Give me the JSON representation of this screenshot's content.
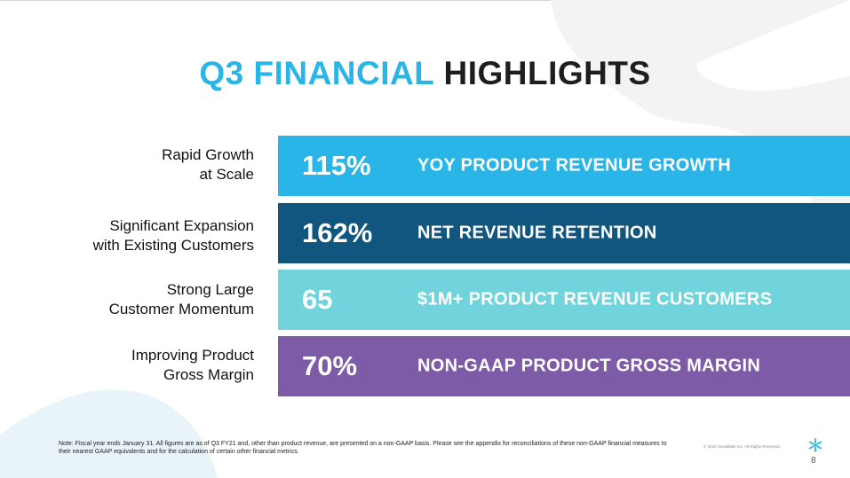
{
  "title": {
    "highlight": "Q3 FINANCIAL",
    "rest": "HIGHLIGHTS"
  },
  "rows": [
    {
      "label_line1": "Rapid Growth",
      "label_line2": "at Scale",
      "metric": "115%",
      "description": "YOY PRODUCT REVENUE GROWTH",
      "color": "#29b5e8"
    },
    {
      "label_line1": "Significant Expansion",
      "label_line2": "with Existing Customers",
      "metric": "162%",
      "description": "NET REVENUE RETENTION",
      "color": "#11567f"
    },
    {
      "label_line1": "Strong Large",
      "label_line2": "Customer Momentum",
      "metric": "65",
      "description": "$1M+ PRODUCT REVENUE CUSTOMERS",
      "color": "#71d3dc"
    },
    {
      "label_line1": "Improving Product",
      "label_line2": "Gross Margin",
      "metric": "70%",
      "description": "NON-GAAP PRODUCT GROSS MARGIN",
      "color": "#7d5ba6"
    }
  ],
  "footer": {
    "note": "Note: Fiscal year ends January 31. All figures are as of Q3 FY21 and, other than product revenue, are presented on a non-GAAP basis. Please see the appendix for reconciliations of these non-GAAP financial measures to their nearest GAAP equivalents and for the calculation of certain other financial metrics.",
    "copyright": "© 2020 Snowflake Inc. All Rights Reserved.",
    "page_number": "8",
    "logo_icon": "snowflake-logo-icon"
  },
  "colors": {
    "accent_blue": "#29b5e8",
    "title_dark": "#1e1e1e",
    "background_shape": "#f2f2f2"
  }
}
